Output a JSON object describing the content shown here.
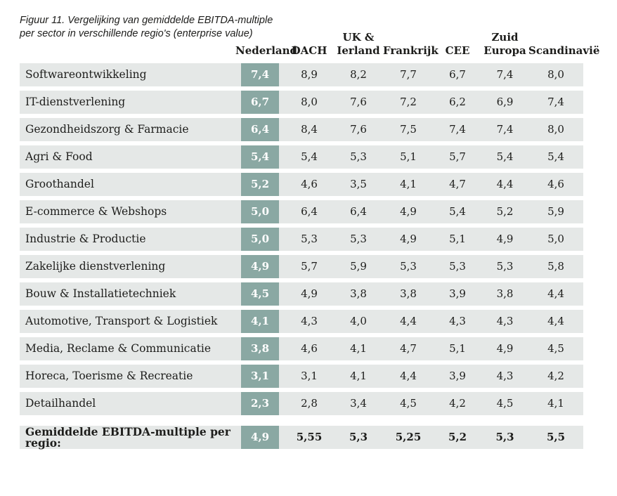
{
  "figure": {
    "title": "Figuur 11.  Vergelijking van gemiddelde EBITDA-multiple\nper sector in verschillende regio's (enterprise value)"
  },
  "colors": {
    "highlight_teal": "#8aa8a3",
    "row_background": "#e5e8e7",
    "text": "#1d1d1b"
  },
  "table": {
    "columns": [
      "Nederland",
      "DACH",
      "UK &\nIerland",
      "Frankrijk",
      "CEE",
      "Zuid\nEuropa",
      "Scandinavië"
    ],
    "rows": [
      {
        "sector": "Softwareontwikkeling",
        "values": [
          "7,4",
          "8,9",
          "8,2",
          "7,7",
          "6,7",
          "7,4",
          "8,0"
        ]
      },
      {
        "sector": "IT-dienstverlening",
        "values": [
          "6,7",
          "8,0",
          "7,6",
          "7,2",
          "6,2",
          "6,9",
          "7,4"
        ]
      },
      {
        "sector": "Gezondheidszorg & Farmacie",
        "values": [
          "6,4",
          "8,4",
          "7,6",
          "7,5",
          "7,4",
          "7,4",
          "8,0"
        ]
      },
      {
        "sector": "Agri & Food",
        "values": [
          "5,4",
          "5,4",
          "5,3",
          "5,1",
          "5,7",
          "5,4",
          "5,4"
        ]
      },
      {
        "sector": "Groothandel",
        "values": [
          "5,2",
          "4,6",
          "3,5",
          "4,1",
          "4,7",
          "4,4",
          "4,6"
        ]
      },
      {
        "sector": "E-commerce & Webshops",
        "values": [
          "5,0",
          "6,4",
          "6,4",
          "4,9",
          "5,4",
          "5,2",
          "5,9"
        ]
      },
      {
        "sector": "Industrie & Productie",
        "values": [
          "5,0",
          "5,3",
          "5,3",
          "4,9",
          "5,1",
          "4,9",
          "5,0"
        ]
      },
      {
        "sector": "Zakelijke dienstverlening",
        "values": [
          "4,9",
          "5,7",
          "5,9",
          "5,3",
          "5,3",
          "5,3",
          "5,8"
        ]
      },
      {
        "sector": "Bouw & Installatietechniek",
        "values": [
          "4,5",
          "4,9",
          "3,8",
          "3,8",
          "3,9",
          "3,8",
          "4,4"
        ]
      },
      {
        "sector": "Automotive, Transport & Logistiek",
        "values": [
          "4,1",
          "4,3",
          "4,0",
          "4,4",
          "4,3",
          "4,3",
          "4,4"
        ]
      },
      {
        "sector": "Media, Reclame & Communicatie",
        "values": [
          "3,8",
          "4,6",
          "4,1",
          "4,7",
          "5,1",
          "4,9",
          "4,5"
        ]
      },
      {
        "sector": "Horeca, Toerisme & Recreatie",
        "values": [
          "3,1",
          "3,1",
          "4,1",
          "4,4",
          "3,9",
          "4,3",
          "4,2"
        ]
      },
      {
        "sector": "Detailhandel",
        "values": [
          "2,3",
          "2,8",
          "3,4",
          "4,5",
          "4,2",
          "4,5",
          "4,1"
        ]
      }
    ],
    "footer": {
      "label": "Gemiddelde EBITDA-multiple per regio:",
      "values": [
        "4,9",
        "5,55",
        "5,3",
        "5,25",
        "5,2",
        "5,3",
        "5,5"
      ]
    }
  },
  "chart_data": {
    "type": "table",
    "title": "Figuur 11. Vergelijking van gemiddelde EBITDA-multiple per sector in verschillende regio's (enterprise value)",
    "columns": [
      "Nederland",
      "DACH",
      "UK & Ierland",
      "Frankrijk",
      "CEE",
      "Zuid Europa",
      "Scandinavië"
    ],
    "categories": [
      "Softwareontwikkeling",
      "IT-dienstverlening",
      "Gezondheidszorg & Farmacie",
      "Agri & Food",
      "Groothandel",
      "E-commerce & Webshops",
      "Industrie & Productie",
      "Zakelijke dienstverlening",
      "Bouw & Installatietechniek",
      "Automotive, Transport & Logistiek",
      "Media, Reclame & Communicatie",
      "Horeca, Toerisme & Recreatie",
      "Detailhandel"
    ],
    "series": [
      {
        "name": "Nederland",
        "values": [
          7.4,
          6.7,
          6.4,
          5.4,
          5.2,
          5.0,
          5.0,
          4.9,
          4.5,
          4.1,
          3.8,
          3.1,
          2.3
        ]
      },
      {
        "name": "DACH",
        "values": [
          8.9,
          8.0,
          8.4,
          5.4,
          4.6,
          6.4,
          5.3,
          5.7,
          4.9,
          4.3,
          4.6,
          3.1,
          2.8
        ]
      },
      {
        "name": "UK & Ierland",
        "values": [
          8.2,
          7.6,
          7.6,
          5.3,
          3.5,
          6.4,
          5.3,
          5.9,
          3.8,
          4.0,
          4.1,
          4.1,
          3.4
        ]
      },
      {
        "name": "Frankrijk",
        "values": [
          7.7,
          7.2,
          7.5,
          5.1,
          4.1,
          4.9,
          4.9,
          5.3,
          3.8,
          4.4,
          4.7,
          4.4,
          4.5
        ]
      },
      {
        "name": "CEE",
        "values": [
          6.7,
          6.2,
          7.4,
          5.7,
          4.7,
          5.4,
          5.1,
          5.3,
          3.9,
          4.3,
          5.1,
          3.9,
          4.2
        ]
      },
      {
        "name": "Zuid Europa",
        "values": [
          7.4,
          6.9,
          7.4,
          5.4,
          4.4,
          5.2,
          4.9,
          5.3,
          3.8,
          4.3,
          4.9,
          4.3,
          4.5
        ]
      },
      {
        "name": "Scandinavië",
        "values": [
          8.0,
          7.4,
          8.0,
          5.4,
          4.6,
          5.9,
          5.0,
          5.8,
          4.4,
          4.4,
          4.5,
          4.2,
          4.1
        ]
      }
    ],
    "footer_row": {
      "label": "Gemiddelde EBITDA-multiple per regio:",
      "values": [
        4.9,
        5.55,
        5.3,
        5.25,
        5.2,
        5.3,
        5.5
      ]
    }
  }
}
